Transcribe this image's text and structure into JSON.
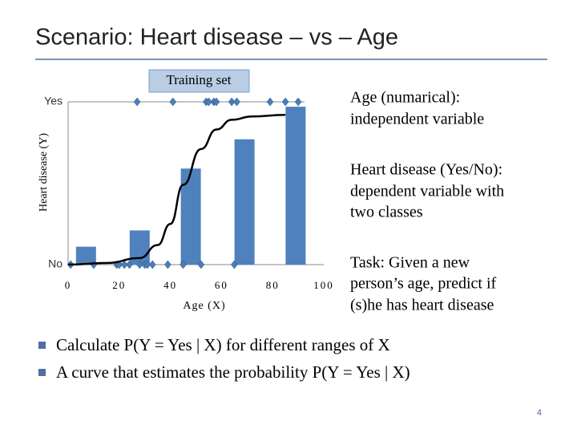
{
  "title": "Scenario: Heart disease – vs – Age",
  "chart_data": {
    "type": "combo",
    "box_label": "Training set",
    "x_label": "Age (X)",
    "y_label": "Heart disease (Y)",
    "xlim": [
      0,
      100
    ],
    "xticks": [
      0,
      20,
      40,
      60,
      80,
      100
    ],
    "ylim": [
      0,
      1
    ],
    "yticks": [
      {
        "value": 1,
        "label": "Yes"
      },
      {
        "value": 0,
        "label": "No"
      }
    ],
    "grid": true,
    "series": [
      {
        "type": "bar",
        "color": "#4f81bd",
        "x": [
          7,
          28,
          48,
          69,
          89
        ],
        "values": [
          0.11,
          0.21,
          0.59,
          0.77,
          0.97
        ]
      },
      {
        "type": "scatter",
        "color": "#4a7ebb",
        "x": [
          27,
          41,
          54,
          55,
          57,
          58,
          64,
          66,
          79,
          85,
          90
        ],
        "values": [
          1,
          1,
          1,
          1,
          1,
          1,
          1,
          1,
          1,
          1,
          1
        ]
      },
      {
        "type": "scatter",
        "color": "#4a7ebb",
        "x": [
          1,
          10,
          19,
          20,
          22,
          24,
          28,
          30,
          31,
          33,
          39,
          45,
          52,
          65
        ],
        "values": [
          0,
          0,
          0,
          0,
          0,
          0,
          0,
          0,
          0,
          0,
          0,
          0,
          0,
          0
        ]
      },
      {
        "type": "line",
        "color": "#000000",
        "x": [
          0,
          15,
          28,
          35,
          40,
          45,
          52,
          58,
          64,
          72,
          85
        ],
        "values": [
          0,
          0.01,
          0.04,
          0.12,
          0.25,
          0.49,
          0.71,
          0.83,
          0.89,
          0.91,
          0.92
        ]
      }
    ]
  },
  "notes": [
    [
      "Age (numarical):",
      "independent variable"
    ],
    [
      "Heart disease (Yes/No):",
      "dependent variable with",
      "two classes"
    ],
    [
      "Task: Given a new",
      "person’s age, predict if",
      "(s)he has heart disease"
    ]
  ],
  "bullets": [
    "Calculate P(Y = Yes | X) for different ranges of X",
    "A curve that estimates the probability P(Y = Yes | X)"
  ],
  "page_number": "4"
}
